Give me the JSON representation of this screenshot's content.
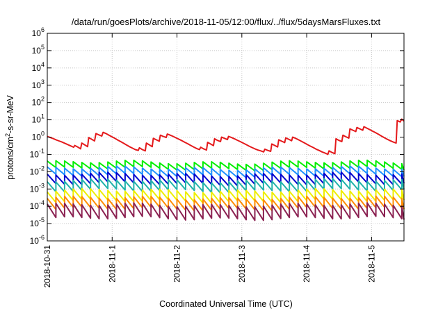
{
  "chart_data": {
    "type": "line",
    "title": "/data/run/goesPlots/archive/2018-11-05/12:00/flux/../flux/5daysMarsFluxes.txt",
    "xlabel": "Coordinated Universal Time (UTC)",
    "ylabel": "protons/cm²-s-sr-MeV",
    "ylabel_parts": [
      "protons/cm",
      "2",
      "-s-sr-MeV"
    ],
    "y_scale": "log",
    "ylim": [
      1e-06,
      1000000.0
    ],
    "y_ticks": [
      {
        "value": 1e-06,
        "base": "10",
        "exp": "-6"
      },
      {
        "value": 1e-05,
        "base": "10",
        "exp": "-5"
      },
      {
        "value": 0.0001,
        "base": "10",
        "exp": "-4"
      },
      {
        "value": 0.001,
        "base": "10",
        "exp": "-3"
      },
      {
        "value": 0.01,
        "base": "10",
        "exp": "-2"
      },
      {
        "value": 0.1,
        "base": "10",
        "exp": "-1"
      },
      {
        "value": 1,
        "base": "10",
        "exp": "0"
      },
      {
        "value": 10,
        "base": "10",
        "exp": "1"
      },
      {
        "value": 100,
        "base": "10",
        "exp": "2"
      },
      {
        "value": 1000,
        "base": "10",
        "exp": "3"
      },
      {
        "value": 10000,
        "base": "10",
        "exp": "4"
      },
      {
        "value": 100000,
        "base": "10",
        "exp": "5"
      },
      {
        "value": 1000000,
        "base": "10",
        "exp": "6"
      }
    ],
    "xlim": [
      "2018-10-31T00:00",
      "2018-11-05T12:00"
    ],
    "x_ticks": [
      "2018-10-31",
      "2018-11-1",
      "2018-11-2",
      "2018-11-3",
      "2018-11-4",
      "2018-11-5"
    ],
    "x_tick_dates": [
      "2018-10-31T00:00",
      "2018-11-01T00:00",
      "2018-11-02T00:00",
      "2018-11-03T00:00",
      "2018-11-04T00:00",
      "2018-11-05T00:00"
    ],
    "grid": true,
    "legend": "none",
    "series": [
      {
        "color": "#e41a1c",
        "points": [
          [
            "2018-10-31T00:00",
            1.1
          ],
          [
            "2018-10-31T01:05",
            0.95
          ],
          [
            "2018-10-31T02:10",
            0.82
          ],
          [
            "2018-10-31T03:15",
            0.7
          ],
          [
            "2018-10-31T04:20",
            0.6
          ],
          [
            "2018-10-31T05:25",
            0.52
          ],
          [
            "2018-10-31T06:30",
            0.44
          ],
          [
            "2018-10-31T07:35",
            0.37
          ],
          [
            "2018-10-31T08:40",
            0.31
          ],
          [
            "2018-10-31T09:45",
            0.26
          ],
          [
            "2018-10-31T10:10",
            0.33
          ],
          [
            "2018-10-31T11:15",
            0.27
          ],
          [
            "2018-10-31T12:20",
            0.21
          ],
          [
            "2018-10-31T12:45",
            0.45
          ],
          [
            "2018-10-31T13:50",
            0.36
          ],
          [
            "2018-10-31T14:55",
            0.28
          ],
          [
            "2018-10-31T15:20",
            0.95
          ],
          [
            "2018-10-31T16:25",
            0.75
          ],
          [
            "2018-10-31T17:30",
            0.6
          ],
          [
            "2018-10-31T18:00",
            1.6
          ],
          [
            "2018-10-31T19:05",
            1.35
          ],
          [
            "2018-10-31T20:10",
            1.15
          ],
          [
            "2018-10-31T20:40",
            1.9
          ],
          [
            "2018-10-31T21:45",
            1.6
          ],
          [
            "2018-10-31T22:50",
            1.3
          ],
          [
            "2018-10-31T23:55",
            1.05
          ],
          [
            "2018-11-01T01:00",
            0.85
          ],
          [
            "2018-11-01T02:05",
            0.68
          ],
          [
            "2018-11-01T03:10",
            0.55
          ],
          [
            "2018-11-01T04:15",
            0.44
          ],
          [
            "2018-11-01T05:20",
            0.35
          ],
          [
            "2018-11-01T06:25",
            0.28
          ],
          [
            "2018-11-01T07:30",
            0.23
          ],
          [
            "2018-11-01T08:35",
            0.19
          ],
          [
            "2018-11-01T09:40",
            0.17
          ],
          [
            "2018-11-01T10:05",
            0.24
          ],
          [
            "2018-11-01T11:10",
            0.19
          ],
          [
            "2018-11-01T12:15",
            0.16
          ],
          [
            "2018-11-01T12:40",
            0.45
          ],
          [
            "2018-11-01T13:45",
            0.36
          ],
          [
            "2018-11-01T14:50",
            0.28
          ],
          [
            "2018-11-01T15:15",
            0.85
          ],
          [
            "2018-11-01T16:20",
            0.7
          ],
          [
            "2018-11-01T17:25",
            0.58
          ],
          [
            "2018-11-01T17:50",
            1.3
          ],
          [
            "2018-11-01T18:55",
            1.1
          ],
          [
            "2018-11-01T20:00",
            0.95
          ],
          [
            "2018-11-01T20:25",
            1.5
          ],
          [
            "2018-11-01T21:30",
            1.3
          ],
          [
            "2018-11-01T22:35",
            1.1
          ],
          [
            "2018-11-01T23:40",
            0.9
          ],
          [
            "2018-11-02T00:45",
            0.75
          ],
          [
            "2018-11-02T01:50",
            0.62
          ],
          [
            "2018-11-02T02:55",
            0.5
          ],
          [
            "2018-11-02T04:00",
            0.41
          ],
          [
            "2018-11-02T05:05",
            0.33
          ],
          [
            "2018-11-02T06:10",
            0.27
          ],
          [
            "2018-11-02T07:15",
            0.22
          ],
          [
            "2018-11-02T08:20",
            0.19
          ],
          [
            "2018-11-02T08:45",
            0.26
          ],
          [
            "2018-11-02T09:50",
            0.21
          ],
          [
            "2018-11-02T10:55",
            0.18
          ],
          [
            "2018-11-02T11:20",
            0.5
          ],
          [
            "2018-11-02T12:25",
            0.4
          ],
          [
            "2018-11-02T13:30",
            0.32
          ],
          [
            "2018-11-02T13:55",
            0.8
          ],
          [
            "2018-11-02T15:00",
            0.65
          ],
          [
            "2018-11-02T16:05",
            0.55
          ],
          [
            "2018-11-02T16:30",
            1.0
          ],
          [
            "2018-11-02T17:35",
            0.85
          ],
          [
            "2018-11-02T18:40",
            0.72
          ],
          [
            "2018-11-02T19:05",
            1.1
          ],
          [
            "2018-11-02T20:10",
            0.95
          ],
          [
            "2018-11-02T21:15",
            0.8
          ],
          [
            "2018-11-02T22:20",
            0.66
          ],
          [
            "2018-11-02T23:25",
            0.55
          ],
          [
            "2018-11-03T00:30",
            0.45
          ],
          [
            "2018-11-03T01:35",
            0.37
          ],
          [
            "2018-11-03T02:40",
            0.3
          ],
          [
            "2018-11-03T03:45",
            0.25
          ],
          [
            "2018-11-03T04:50",
            0.21
          ],
          [
            "2018-11-03T05:55",
            0.18
          ],
          [
            "2018-11-03T07:00",
            0.16
          ],
          [
            "2018-11-03T08:05",
            0.14
          ],
          [
            "2018-11-03T08:30",
            0.2
          ],
          [
            "2018-11-03T09:35",
            0.17
          ],
          [
            "2018-11-03T10:40",
            0.15
          ],
          [
            "2018-11-03T11:05",
            0.4
          ],
          [
            "2018-11-03T12:10",
            0.33
          ],
          [
            "2018-11-03T13:15",
            0.27
          ],
          [
            "2018-11-03T13:40",
            0.7
          ],
          [
            "2018-11-03T14:45",
            0.58
          ],
          [
            "2018-11-03T15:50",
            0.48
          ],
          [
            "2018-11-03T16:15",
            0.9
          ],
          [
            "2018-11-03T17:20",
            0.75
          ],
          [
            "2018-11-03T18:25",
            0.62
          ],
          [
            "2018-11-03T18:50",
            1.0
          ],
          [
            "2018-11-03T19:55",
            0.85
          ],
          [
            "2018-11-03T21:00",
            0.7
          ],
          [
            "2018-11-03T22:05",
            0.57
          ],
          [
            "2018-11-03T23:10",
            0.46
          ],
          [
            "2018-11-04T00:15",
            0.37
          ],
          [
            "2018-11-04T01:20",
            0.3
          ],
          [
            "2018-11-04T02:25",
            0.25
          ],
          [
            "2018-11-04T03:30",
            0.2
          ],
          [
            "2018-11-04T04:35",
            0.17
          ],
          [
            "2018-11-04T05:40",
            0.14
          ],
          [
            "2018-11-04T06:45",
            0.12
          ],
          [
            "2018-11-04T07:50",
            0.1
          ],
          [
            "2018-11-04T08:15",
            0.16
          ],
          [
            "2018-11-04T09:20",
            0.13
          ],
          [
            "2018-11-04T10:25",
            0.11
          ],
          [
            "2018-11-04T10:50",
            0.8
          ],
          [
            "2018-11-04T11:55",
            0.65
          ],
          [
            "2018-11-04T13:00",
            0.55
          ],
          [
            "2018-11-04T13:25",
            1.3
          ],
          [
            "2018-11-04T14:30",
            1.05
          ],
          [
            "2018-11-04T15:35",
            0.88
          ],
          [
            "2018-11-04T16:00",
            3.0
          ],
          [
            "2018-11-04T17:05",
            2.5
          ],
          [
            "2018-11-04T18:10",
            2.1
          ],
          [
            "2018-11-04T18:35",
            3.6
          ],
          [
            "2018-11-04T19:40",
            3.0
          ],
          [
            "2018-11-04T20:45",
            2.5
          ],
          [
            "2018-11-04T21:10",
            4.0
          ],
          [
            "2018-11-04T22:15",
            3.3
          ],
          [
            "2018-11-04T23:20",
            2.7
          ],
          [
            "2018-11-05T00:25",
            2.2
          ],
          [
            "2018-11-05T01:30",
            1.8
          ],
          [
            "2018-11-05T02:35",
            1.45
          ],
          [
            "2018-11-05T03:40",
            1.15
          ],
          [
            "2018-11-05T04:45",
            0.92
          ],
          [
            "2018-11-05T05:50",
            0.75
          ],
          [
            "2018-11-05T06:55",
            0.62
          ],
          [
            "2018-11-05T08:00",
            0.52
          ],
          [
            "2018-11-05T09:05",
            0.45
          ],
          [
            "2018-11-05T09:30",
            9.0
          ],
          [
            "2018-11-05T10:35",
            7.5
          ],
          [
            "2018-11-05T11:10",
            11
          ],
          [
            "2018-11-05T12:00",
            8.5
          ]
        ]
      },
      {
        "color": "#00ee00",
        "min": 0.015,
        "max": 0.035
      },
      {
        "color": "#1e90ff",
        "min": 0.006,
        "max": 0.016
      },
      {
        "color": "#0000cd",
        "min": 0.002,
        "max": 0.007
      },
      {
        "color": "#20b2aa",
        "min": 0.0008,
        "max": 0.003
      },
      {
        "color": "#eeee00",
        "min": 0.0002,
        "max": 0.0008
      },
      {
        "color": "#ff8c00",
        "min": 7e-05,
        "max": 0.0003
      },
      {
        "color": "#8b2252",
        "min": 2e-05,
        "max": 0.00012
      }
    ],
    "sawtooth_period_hours": 3.2
  }
}
